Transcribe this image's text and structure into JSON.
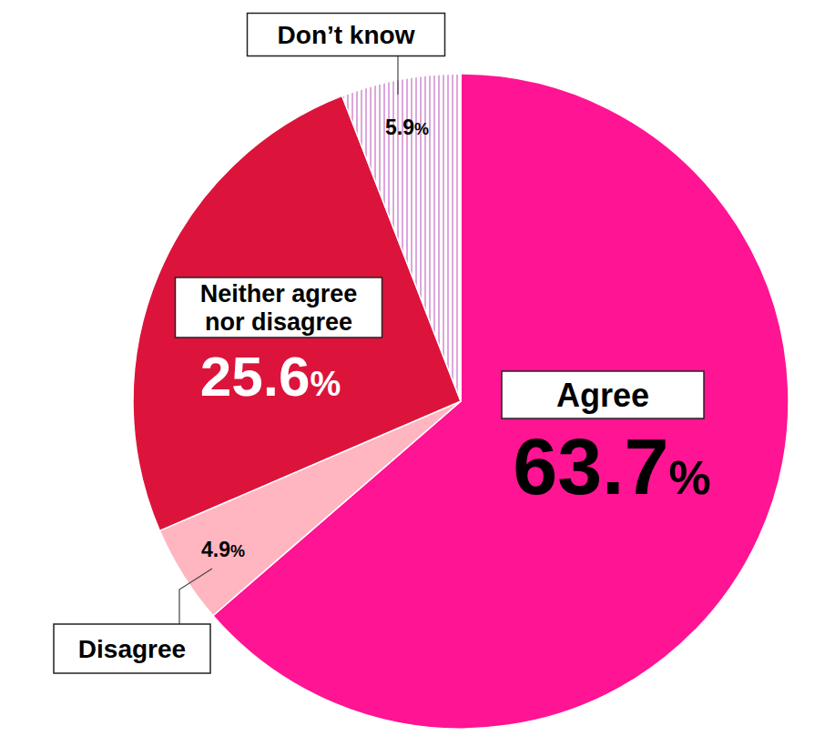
{
  "chart_data": {
    "type": "pie",
    "categories": [
      "Agree",
      "Disagree",
      "Neither agree nor disagree",
      "Don’t know"
    ],
    "values": [
      63.7,
      4.9,
      25.6,
      5.9
    ],
    "value_labels": [
      "63.7%",
      "4.9%",
      "25.6%",
      "5.9%"
    ],
    "colors": [
      "#ff1493",
      "#ffb6c1",
      "#dc143c",
      "#dba8db"
    ],
    "data_labels": true
  }
}
